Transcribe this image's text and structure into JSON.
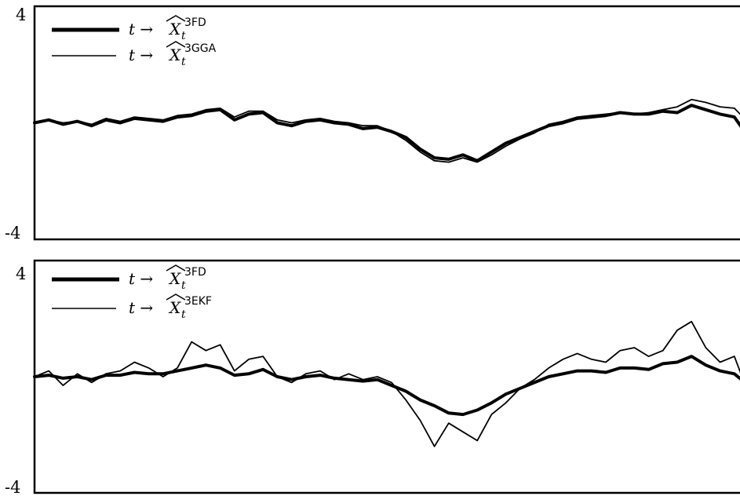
{
  "chart_data": [
    {
      "type": "line",
      "ylim": [
        -4,
        4
      ],
      "ytick_labels": [
        "4",
        "-4"
      ],
      "xlim": [
        0,
        100
      ],
      "x": [
        0,
        2,
        4,
        6,
        8,
        10,
        12,
        14,
        16,
        18,
        20,
        22,
        24,
        26,
        28,
        30,
        32,
        34,
        36,
        38,
        40,
        42,
        44,
        46,
        48,
        50,
        52,
        54,
        56,
        58,
        60,
        62,
        64,
        66,
        68,
        70,
        72,
        74,
        76,
        78,
        80,
        82,
        84,
        86,
        88,
        90,
        92,
        94,
        96,
        98,
        100
      ],
      "series": [
        {
          "name_parts": {
            "lhs": "t →",
            "var": "X",
            "sup": "3FD",
            "sub": "t"
          },
          "style": "thick",
          "values": [
            0.0,
            0.1,
            -0.05,
            0.05,
            -0.1,
            0.1,
            0.0,
            0.15,
            0.1,
            0.05,
            0.2,
            0.25,
            0.4,
            0.45,
            0.1,
            0.3,
            0.35,
            0.0,
            -0.1,
            0.05,
            0.1,
            0.0,
            -0.05,
            -0.2,
            -0.15,
            -0.3,
            -0.5,
            -0.9,
            -1.2,
            -1.25,
            -1.1,
            -1.3,
            -1.0,
            -0.7,
            -0.5,
            -0.3,
            -0.1,
            0.0,
            0.15,
            0.2,
            0.25,
            0.35,
            0.3,
            0.3,
            0.4,
            0.35,
            0.6,
            0.45,
            0.3,
            0.2,
            -0.5
          ]
        },
        {
          "name_parts": {
            "lhs": "t →",
            "var": "X",
            "sup": "3GGA",
            "sub": "t"
          },
          "style": "thin",
          "values": [
            0.0,
            0.1,
            0.0,
            0.05,
            -0.05,
            0.15,
            0.05,
            0.2,
            0.15,
            0.1,
            0.25,
            0.3,
            0.45,
            0.5,
            0.2,
            0.4,
            0.4,
            0.1,
            0.0,
            0.1,
            0.15,
            0.05,
            0.0,
            -0.1,
            -0.1,
            -0.3,
            -0.6,
            -1.0,
            -1.3,
            -1.35,
            -1.2,
            -1.35,
            -1.1,
            -0.8,
            -0.55,
            -0.35,
            -0.05,
            0.05,
            0.2,
            0.25,
            0.3,
            0.35,
            0.3,
            0.35,
            0.45,
            0.55,
            0.8,
            0.7,
            0.55,
            0.5,
            0.0
          ]
        }
      ]
    },
    {
      "type": "line",
      "ylim": [
        -4,
        4
      ],
      "ytick_labels": [
        "4",
        "-4"
      ],
      "xlim": [
        0,
        100
      ],
      "x": [
        0,
        2,
        4,
        6,
        8,
        10,
        12,
        14,
        16,
        18,
        20,
        22,
        24,
        26,
        28,
        30,
        32,
        34,
        36,
        38,
        40,
        42,
        44,
        46,
        48,
        50,
        52,
        54,
        56,
        58,
        60,
        62,
        64,
        66,
        68,
        70,
        72,
        74,
        76,
        78,
        80,
        82,
        84,
        86,
        88,
        90,
        92,
        94,
        96,
        98,
        100
      ],
      "series": [
        {
          "name_parts": {
            "lhs": "t →",
            "var": "X",
            "sup": "3FD",
            "sub": "t"
          },
          "style": "thick",
          "values": [
            0.0,
            0.05,
            -0.05,
            0.0,
            -0.1,
            0.05,
            0.05,
            0.15,
            0.1,
            0.1,
            0.2,
            0.3,
            0.4,
            0.3,
            0.05,
            0.1,
            0.25,
            0.0,
            -0.1,
            0.0,
            0.05,
            -0.05,
            -0.1,
            -0.15,
            -0.1,
            -0.3,
            -0.5,
            -0.8,
            -1.0,
            -1.25,
            -1.3,
            -1.15,
            -0.9,
            -0.6,
            -0.4,
            -0.2,
            0.0,
            0.1,
            0.2,
            0.2,
            0.15,
            0.3,
            0.3,
            0.25,
            0.45,
            0.5,
            0.7,
            0.4,
            0.2,
            0.1,
            -0.3
          ]
        },
        {
          "name_parts": {
            "lhs": "t →",
            "var": "X",
            "sup": "3EKF",
            "sub": "t"
          },
          "style": "thin",
          "values": [
            0.0,
            0.2,
            -0.3,
            0.1,
            -0.2,
            0.1,
            0.2,
            0.5,
            0.3,
            0.0,
            0.3,
            1.2,
            0.9,
            1.1,
            0.2,
            0.6,
            0.7,
            0.0,
            -0.2,
            0.1,
            0.2,
            -0.1,
            0.1,
            -0.1,
            0.0,
            -0.2,
            -0.8,
            -1.5,
            -2.4,
            -1.6,
            -1.9,
            -2.2,
            -1.3,
            -0.9,
            -0.4,
            -0.1,
            0.3,
            0.6,
            0.8,
            0.6,
            0.5,
            0.9,
            1.0,
            0.7,
            0.9,
            1.6,
            1.9,
            1.0,
            0.5,
            0.7,
            -0.6
          ]
        }
      ]
    }
  ]
}
